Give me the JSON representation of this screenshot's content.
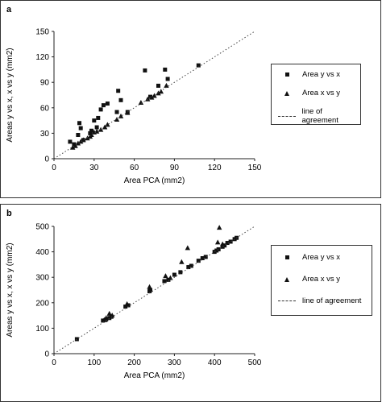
{
  "panels": [
    {
      "label": "a"
    },
    {
      "label": "b"
    }
  ],
  "chart_data": [
    {
      "type": "scatter",
      "panel": "a",
      "title": "",
      "xlabel": "Area PCA (mm2)",
      "ylabel": "Areas y vs x, x vs y (mm2)",
      "xlim": [
        0,
        150
      ],
      "ylim": [
        0,
        150
      ],
      "xticks": [
        0,
        30,
        60,
        90,
        120,
        150
      ],
      "yticks": [
        0,
        30,
        60,
        90,
        120,
        150
      ],
      "grid": false,
      "legend_position": "right",
      "series": [
        {
          "name": "Area y vs x",
          "marker": "square",
          "points": [
            [
              12,
              20
            ],
            [
              15,
              17
            ],
            [
              18,
              28
            ],
            [
              19,
              42
            ],
            [
              20,
              36
            ],
            [
              22,
              22
            ],
            [
              27,
              30
            ],
            [
              28,
              33
            ],
            [
              30,
              45
            ],
            [
              32,
              37
            ],
            [
              33,
              48
            ],
            [
              35,
              58
            ],
            [
              37,
              63
            ],
            [
              40,
              65
            ],
            [
              47,
              55
            ],
            [
              48,
              80
            ],
            [
              50,
              69
            ],
            [
              55,
              55
            ],
            [
              68,
              104
            ],
            [
              72,
              73
            ],
            [
              78,
              86
            ],
            [
              83,
              105
            ],
            [
              85,
              94
            ],
            [
              108,
              110
            ]
          ]
        },
        {
          "name": "Area x vs y",
          "marker": "triangle",
          "points": [
            [
              14,
              13
            ],
            [
              16,
              15
            ],
            [
              18,
              18
            ],
            [
              20,
              20
            ],
            [
              22,
              22
            ],
            [
              25,
              24
            ],
            [
              27,
              26
            ],
            [
              28,
              28
            ],
            [
              30,
              31
            ],
            [
              32,
              32
            ],
            [
              35,
              34
            ],
            [
              38,
              37
            ],
            [
              40,
              40
            ],
            [
              47,
              46
            ],
            [
              50,
              50
            ],
            [
              55,
              54
            ],
            [
              65,
              66
            ],
            [
              70,
              70
            ],
            [
              73,
              72
            ],
            [
              75,
              74
            ],
            [
              78,
              77
            ],
            [
              80,
              79
            ],
            [
              84,
              86
            ]
          ]
        },
        {
          "name": "line of agreement",
          "marker": "line",
          "line": [
            [
              0,
              0
            ],
            [
              150,
              150
            ]
          ]
        }
      ]
    },
    {
      "type": "scatter",
      "panel": "b",
      "title": "",
      "xlabel": "Area PCA (mm2)",
      "ylabel": "Areas y vs x, x vs y (mm2)",
      "xlim": [
        0,
        500
      ],
      "ylim": [
        0,
        500
      ],
      "xticks": [
        0,
        100,
        200,
        300,
        400,
        500
      ],
      "yticks": [
        0,
        100,
        200,
        300,
        400,
        500
      ],
      "grid": false,
      "legend_position": "right",
      "series": [
        {
          "name": "Area y vs x",
          "marker": "square",
          "points": [
            [
              57,
              57
            ],
            [
              122,
              130
            ],
            [
              128,
              132
            ],
            [
              130,
              135
            ],
            [
              138,
              140
            ],
            [
              143,
              145
            ],
            [
              178,
              185
            ],
            [
              185,
              190
            ],
            [
              238,
              245
            ],
            [
              240,
              250
            ],
            [
              275,
              285
            ],
            [
              285,
              290
            ],
            [
              300,
              310
            ],
            [
              315,
              320
            ],
            [
              335,
              340
            ],
            [
              342,
              345
            ],
            [
              360,
              365
            ],
            [
              370,
              375
            ],
            [
              378,
              380
            ],
            [
              400,
              400
            ],
            [
              405,
              405
            ],
            [
              410,
              410
            ],
            [
              420,
              420
            ],
            [
              425,
              425
            ],
            [
              432,
              435
            ],
            [
              440,
              440
            ],
            [
              450,
              450
            ],
            [
              455,
              455
            ]
          ]
        },
        {
          "name": "Area x vs y",
          "marker": "triangle",
          "points": [
            [
              130,
              140
            ],
            [
              138,
              157
            ],
            [
              145,
              150
            ],
            [
              182,
              195
            ],
            [
              238,
              262
            ],
            [
              278,
              305
            ],
            [
              290,
              297
            ],
            [
              318,
              360
            ],
            [
              333,
              415
            ],
            [
              408,
              437
            ],
            [
              412,
              495
            ],
            [
              420,
              430
            ]
          ]
        },
        {
          "name": "line of agreement",
          "marker": "line",
          "line": [
            [
              0,
              0
            ],
            [
              500,
              500
            ]
          ]
        }
      ]
    }
  ]
}
